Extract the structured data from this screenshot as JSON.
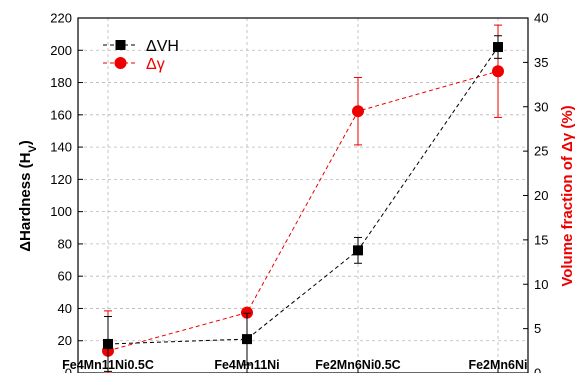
{
  "chart_data": {
    "type": "line",
    "categories": [
      "Fe4Mn11Ni0.5C",
      "Fe4Mn11Ni",
      "Fe2Mn6Ni0.5C",
      "Fe2Mn6Ni"
    ],
    "ylabel_left": "ΔHardness (H",
    "ylabel_left_sub": "V",
    "ylabel_left_close": ")",
    "ylabel_right": "Volume fraction of Δγ (%)",
    "ylim_left": [
      0,
      220
    ],
    "yticks_left": [
      0,
      20,
      40,
      60,
      80,
      100,
      120,
      140,
      160,
      180,
      200,
      220
    ],
    "ylim_right": [
      0,
      40
    ],
    "yticks_right": [
      0,
      5,
      10,
      15,
      20,
      25,
      30,
      35,
      40
    ],
    "grid": true,
    "legend_position": "top-left",
    "series": [
      {
        "name": "ΔVH",
        "axis": "left",
        "marker": "square",
        "color": "#000000",
        "values": [
          18,
          21,
          76,
          202
        ],
        "errors": [
          17,
          16,
          8,
          7
        ]
      },
      {
        "name": "Δγ",
        "axis": "right",
        "marker": "circle",
        "color": "#ee0000",
        "values": [
          2.5,
          6.8,
          29.5,
          34
        ],
        "errors": [
          4.5,
          0,
          3.8,
          5.2
        ]
      }
    ]
  }
}
